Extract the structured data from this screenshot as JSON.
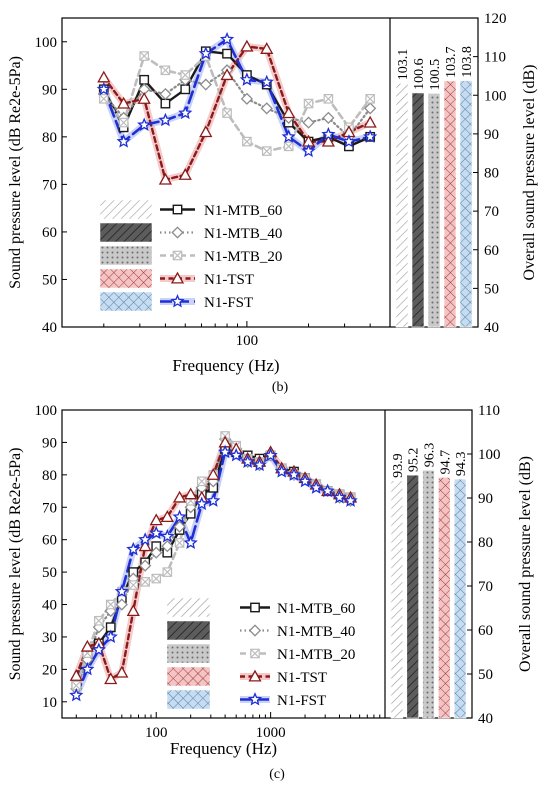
{
  "colors": {
    "axis": "#000000",
    "mtb60": "#1a1a1a",
    "mtb40": "#8c8c8c",
    "mtb20": "#bdbdbd",
    "tst": "#8b1a1a",
    "tst_glow": "#f2b8b8",
    "fst": "#1f2fd6",
    "fst_glow": "#b9c3f5",
    "bar_mtb40": "#4d4d4d",
    "bar_mtb20": "#c8c8c8",
    "bar_tst": "#f3c6c6",
    "bar_fst": "#c4dbf0"
  },
  "chart_data": [
    {
      "type": "line",
      "panel_label": "(b)",
      "xlabel": "Frequency (Hz)",
      "ylabel": "Sound pressure level (dB Re2e-5Pa)",
      "y2label": "Overall sound pressure level (dB)",
      "xscale": "log",
      "xlim": [
        12.5,
        500
      ],
      "ylim": [
        40,
        105
      ],
      "y2lim": [
        40,
        120
      ],
      "xticks": [
        100
      ],
      "xtick_labels": [
        "100"
      ],
      "yticks": [
        40,
        50,
        60,
        70,
        80,
        90,
        100
      ],
      "y2ticks": [
        40,
        50,
        60,
        70,
        80,
        90,
        100,
        110,
        120
      ],
      "legend_position": "bottom-left",
      "series": [
        {
          "name": "N1-MTB_60",
          "key": "mtb60",
          "marker": "square",
          "dash": "solid",
          "x": [
            20,
            25,
            31.5,
            40,
            50,
            63,
            80,
            100,
            125,
            160,
            200,
            250,
            315,
            400
          ],
          "y": [
            90,
            82,
            92,
            87,
            90,
            98,
            97.5,
            93,
            91,
            83,
            79,
            80,
            78,
            80
          ]
        },
        {
          "name": "N1-MTB_40",
          "key": "mtb40",
          "marker": "diamond",
          "dash": "dot",
          "x": [
            20,
            25,
            31.5,
            40,
            50,
            63,
            80,
            100,
            125,
            160,
            200,
            250,
            315,
            400
          ],
          "y": [
            89,
            84,
            90,
            89,
            92,
            91,
            94,
            88,
            86,
            84,
            83,
            84,
            80,
            86
          ]
        },
        {
          "name": "N1-MTB_20",
          "key": "mtb20",
          "marker": "x-square",
          "dash": "dash",
          "x": [
            20,
            25,
            31.5,
            40,
            50,
            63,
            80,
            100,
            125,
            160,
            200,
            250,
            315,
            400
          ],
          "y": [
            88,
            83,
            97,
            94,
            93,
            97,
            85,
            79,
            77,
            78,
            87,
            88,
            82,
            88
          ]
        },
        {
          "name": "N1-TST",
          "key": "tst",
          "marker": "triangle",
          "dash": "shortdash",
          "x": [
            20,
            25,
            31.5,
            40,
            50,
            63,
            80,
            100,
            125,
            160,
            200,
            250,
            315,
            400
          ],
          "y": [
            92.5,
            87,
            88,
            71,
            72,
            81,
            93,
            99,
            98.5,
            85,
            79,
            79,
            81,
            83
          ]
        },
        {
          "name": "N1-FST",
          "key": "fst",
          "marker": "star",
          "dash": "longdash",
          "x": [
            20,
            25,
            31.5,
            40,
            50,
            63,
            80,
            100,
            125,
            160,
            200,
            250,
            315,
            400
          ],
          "y": [
            90,
            79,
            82.5,
            83.5,
            85,
            97.5,
            100.5,
            92,
            91.5,
            80,
            77,
            80.5,
            79,
            80
          ]
        }
      ],
      "bars": {
        "categories": [
          "N1-MTB_60",
          "N1-MTB_40",
          "N1-MTB_20",
          "N1-TST",
          "N1-FST"
        ],
        "values": [
          103.1,
          100.6,
          100.5,
          103.7,
          103.8
        ],
        "labels": [
          "103.1",
          "100.6",
          "100.5",
          "103.7",
          "103.8"
        ]
      }
    },
    {
      "type": "line",
      "panel_label": "(c)",
      "xlabel": "Frequency (Hz)",
      "ylabel": "Sound pressure level (dB Re2e-5Pa)",
      "y2label": "Overall sound pressure level (dB)",
      "xscale": "log",
      "xlim": [
        15,
        10000
      ],
      "ylim": [
        5,
        100
      ],
      "y2lim": [
        40,
        110
      ],
      "xticks": [
        100,
        1000
      ],
      "xtick_labels": [
        "100",
        "1000"
      ],
      "yticks": [
        10,
        20,
        30,
        40,
        50,
        60,
        70,
        80,
        90,
        100
      ],
      "y2ticks": [
        40,
        50,
        60,
        70,
        80,
        90,
        100,
        110
      ],
      "legend_position": "bottom-center",
      "series": [
        {
          "name": "N1-MTB_60",
          "key": "mtb60",
          "marker": "square",
          "dash": "solid",
          "x": [
            20,
            25,
            31.5,
            40,
            50,
            63,
            80,
            100,
            125,
            160,
            200,
            250,
            315,
            400,
            500,
            630,
            800,
            1000,
            1250,
            1600,
            2000,
            2500,
            3150,
            4000,
            5000
          ],
          "y": [
            16,
            25,
            28,
            33,
            42,
            50,
            53,
            58,
            56,
            63,
            68,
            74,
            76,
            88,
            87,
            86,
            85,
            86,
            82,
            81,
            79,
            77,
            75,
            74,
            73
          ]
        },
        {
          "name": "N1-MTB_40",
          "key": "mtb40",
          "marker": "diamond",
          "dash": "dot",
          "x": [
            20,
            25,
            31.5,
            40,
            50,
            63,
            80,
            100,
            125,
            160,
            200,
            250,
            315,
            400,
            500,
            630,
            800,
            1000,
            1250,
            1600,
            2000,
            2500,
            3150,
            4000,
            5000
          ],
          "y": [
            14,
            23,
            33,
            38,
            40,
            48,
            52,
            56,
            58,
            64,
            70,
            76,
            78,
            91,
            88,
            84,
            83,
            86,
            82,
            80,
            79,
            77,
            75,
            73,
            72
          ]
        },
        {
          "name": "N1-MTB_20",
          "key": "mtb20",
          "marker": "x-square",
          "dash": "dash",
          "x": [
            20,
            25,
            31.5,
            40,
            50,
            63,
            80,
            100,
            125,
            160,
            200,
            250,
            315,
            400,
            500,
            630,
            800,
            1000,
            1250,
            1600,
            2000,
            2500,
            3150,
            4000,
            5000
          ],
          "y": [
            15,
            25,
            35,
            40,
            44,
            46,
            47,
            48,
            50,
            59,
            72,
            78,
            80,
            92,
            89,
            85,
            84,
            86,
            82,
            80,
            79,
            77,
            75,
            74,
            73
          ]
        },
        {
          "name": "N1-TST",
          "key": "tst",
          "marker": "triangle",
          "dash": "shortdash",
          "x": [
            20,
            25,
            31.5,
            40,
            50,
            63,
            80,
            100,
            125,
            160,
            200,
            250,
            315,
            400,
            500,
            630,
            800,
            1000,
            1250,
            1600,
            2000,
            2500,
            3150,
            4000,
            5000
          ],
          "y": [
            18,
            27,
            28,
            17,
            19,
            38,
            58,
            66,
            67,
            73,
            74,
            73,
            80,
            90,
            88,
            85,
            84,
            87,
            82,
            81,
            79,
            77,
            75,
            74,
            73
          ]
        },
        {
          "name": "N1-FST",
          "key": "fst",
          "marker": "star",
          "dash": "longdash",
          "x": [
            20,
            25,
            31.5,
            40,
            50,
            63,
            80,
            100,
            125,
            160,
            200,
            250,
            315,
            400,
            500,
            630,
            800,
            1000,
            1250,
            1600,
            2000,
            2500,
            3150,
            4000,
            5000
          ],
          "y": [
            12,
            20,
            26,
            30,
            44,
            57,
            60,
            62,
            61,
            67,
            59,
            71,
            72,
            87,
            86,
            84,
            83,
            86,
            81,
            80,
            78,
            76,
            75,
            73,
            72
          ]
        }
      ],
      "bars": {
        "categories": [
          "N1-MTB_60",
          "N1-MTB_40",
          "N1-MTB_20",
          "N1-TST",
          "N1-FST"
        ],
        "values": [
          93.9,
          95.2,
          96.3,
          94.7,
          94.3
        ],
        "labels": [
          "93.9",
          "95.2",
          "96.3",
          "94.7",
          "94.3"
        ]
      }
    }
  ]
}
